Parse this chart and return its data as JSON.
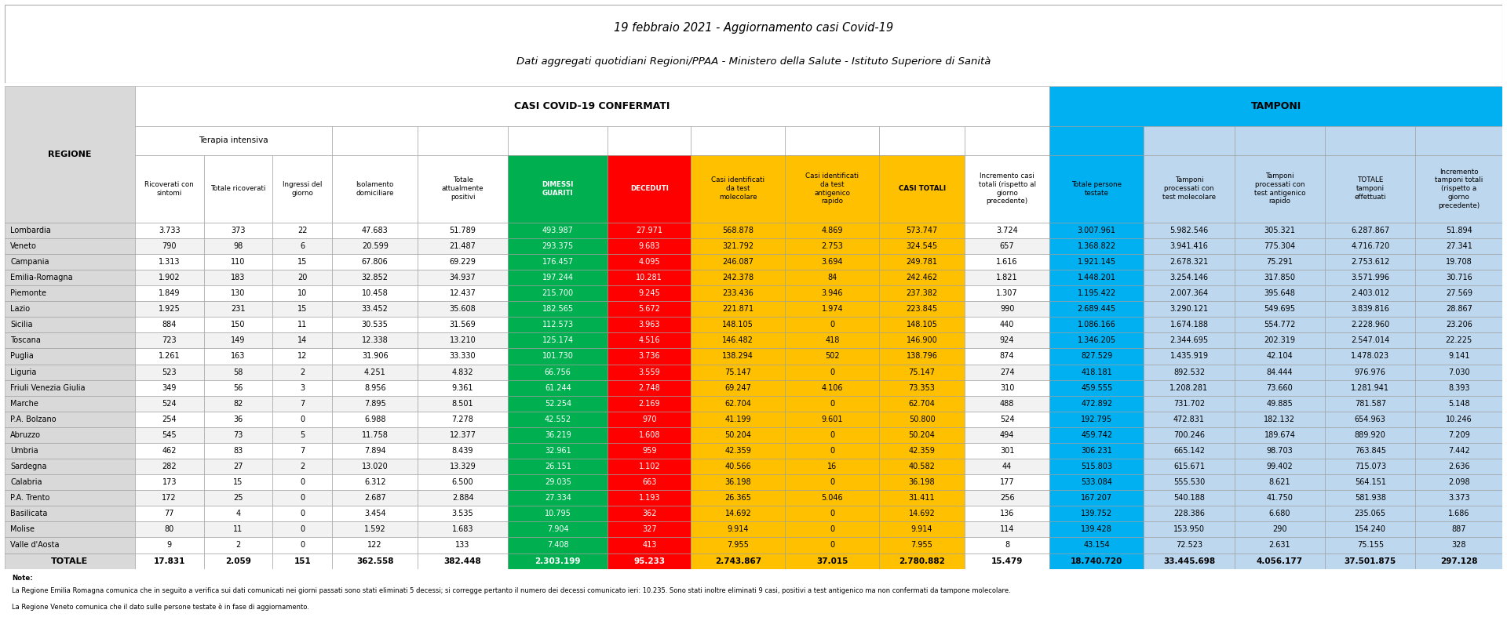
{
  "title1": "19 febbraio 2021 - Aggiornamento casi Covid-19",
  "title2": "Dati aggregati quotidiani Regioni/PPAA - Ministero della Salute - Istituto Superiore di Sanità",
  "header_casi": "CASI COVID-19 CONFERMATI",
  "header_tamponi": "TAMPONI",
  "subheader_terapia": "Terapia intensiva",
  "regions": [
    "Lombardia",
    "Veneto",
    "Campania",
    "Emilia-Romagna",
    "Piemonte",
    "Lazio",
    "Sicilia",
    "Toscana",
    "Puglia",
    "Liguria",
    "Friuli Venezia Giulia",
    "Marche",
    "P.A. Bolzano",
    "Abruzzo",
    "Umbria",
    "Sardegna",
    "Calabria",
    "P.A. Trento",
    "Basilicata",
    "Molise",
    "Valle d'Aosta"
  ],
  "col_header_texts": [
    "",
    "Ricoverati con\nsintomi",
    "Totale ricoverati",
    "Ingressi del\ngiorno",
    "Isolamento\ndomiciliare",
    "Totale\nattualmente\npositivi",
    "DIMESSI\nGUARITI",
    "DECEDUTI",
    "Casi identificati\nda test\nmolecolare",
    "Casi identificati\nda test\nantigenico\nrapido",
    "CASI TOTALI",
    "Incremento casi\ntotali (rispetto al\ngiorno\nprecedente)",
    "Totale persone\ntestate",
    "Tamponi\nprocessati con\ntest molecolare",
    "Tamponi\nprocessati con\ntest antigenico\nrapido",
    "TOTALE\ntamponi\neffettuati",
    "Incremento\ntamponi totali\n(rispetto a\ngiorno\nprecedente)"
  ],
  "data": [
    [
      3733,
      373,
      22,
      47683,
      51789,
      493987,
      27971,
      568878,
      4869,
      573747,
      3724,
      3007961,
      5982546,
      305321,
      6287867,
      51894
    ],
    [
      790,
      98,
      6,
      20599,
      21487,
      293375,
      9683,
      321792,
      2753,
      324545,
      657,
      1368822,
      3941416,
      775304,
      4716720,
      27341
    ],
    [
      1313,
      110,
      15,
      67806,
      69229,
      176457,
      4095,
      246087,
      3694,
      249781,
      1616,
      1921145,
      2678321,
      75291,
      2753612,
      19708
    ],
    [
      1902,
      183,
      20,
      32852,
      34937,
      197244,
      10281,
      242378,
      84,
      242462,
      1821,
      1448201,
      3254146,
      317850,
      3571996,
      30716
    ],
    [
      1849,
      130,
      10,
      10458,
      12437,
      215700,
      9245,
      233436,
      3946,
      237382,
      1307,
      1195422,
      2007364,
      395648,
      2403012,
      27569
    ],
    [
      1925,
      231,
      15,
      33452,
      35608,
      182565,
      5672,
      221871,
      1974,
      223845,
      990,
      2689445,
      3290121,
      549695,
      3839816,
      28867
    ],
    [
      884,
      150,
      11,
      30535,
      31569,
      112573,
      3963,
      148105,
      0,
      148105,
      440,
      1086166,
      1674188,
      554772,
      2228960,
      23206
    ],
    [
      723,
      149,
      14,
      12338,
      13210,
      125174,
      4516,
      146482,
      418,
      146900,
      924,
      1346205,
      2344695,
      202319,
      2547014,
      22225
    ],
    [
      1261,
      163,
      12,
      31906,
      33330,
      101730,
      3736,
      138294,
      502,
      138796,
      874,
      827529,
      1435919,
      42104,
      1478023,
      9141
    ],
    [
      523,
      58,
      2,
      4251,
      4832,
      66756,
      3559,
      75147,
      0,
      75147,
      274,
      418181,
      892532,
      84444,
      976976,
      7030
    ],
    [
      349,
      56,
      3,
      8956,
      9361,
      61244,
      2748,
      69247,
      4106,
      73353,
      310,
      459555,
      1208281,
      73660,
      1281941,
      8393
    ],
    [
      524,
      82,
      7,
      7895,
      8501,
      52254,
      2169,
      62704,
      0,
      62704,
      488,
      472892,
      731702,
      49885,
      781587,
      5148
    ],
    [
      254,
      36,
      0,
      6988,
      7278,
      42552,
      970,
      41199,
      9601,
      50800,
      524,
      192795,
      472831,
      182132,
      654963,
      10246
    ],
    [
      545,
      73,
      5,
      11758,
      12377,
      36219,
      1608,
      50204,
      0,
      50204,
      494,
      459742,
      700246,
      189674,
      889920,
      7209
    ],
    [
      462,
      83,
      7,
      7894,
      8439,
      32961,
      959,
      42359,
      0,
      42359,
      301,
      306231,
      665142,
      98703,
      763845,
      7442
    ],
    [
      282,
      27,
      2,
      13020,
      13329,
      26151,
      1102,
      40566,
      16,
      40582,
      44,
      515803,
      615671,
      99402,
      715073,
      2636
    ],
    [
      173,
      15,
      0,
      6312,
      6500,
      29035,
      663,
      36198,
      0,
      36198,
      177,
      533084,
      555530,
      8621,
      564151,
      2098
    ],
    [
      172,
      25,
      0,
      2687,
      2884,
      27334,
      1193,
      26365,
      5046,
      31411,
      256,
      167207,
      540188,
      41750,
      581938,
      3373
    ],
    [
      77,
      4,
      0,
      3454,
      3535,
      10795,
      362,
      14692,
      0,
      14692,
      136,
      139752,
      228386,
      6680,
      235065,
      1686
    ],
    [
      80,
      11,
      0,
      1592,
      1683,
      7904,
      327,
      9914,
      0,
      9914,
      114,
      139428,
      153950,
      290,
      154240,
      887
    ],
    [
      9,
      2,
      0,
      122,
      133,
      7408,
      413,
      7955,
      0,
      7955,
      8,
      43154,
      72523,
      2631,
      75155,
      328
    ]
  ],
  "totals": [
    17831,
    2059,
    151,
    362558,
    382448,
    2303199,
    95233,
    2743867,
    37015,
    2780882,
    15479,
    18740720,
    33445698,
    4056177,
    37501875,
    297128
  ],
  "col_bg": [
    "#d9d9d9",
    "#ffffff",
    "#ffffff",
    "#ffffff",
    "#ffffff",
    "#ffffff",
    "#00b050",
    "#ff0000",
    "#ffc000",
    "#ffc000",
    "#ffc000",
    "#ffffff",
    "#00b0f0",
    "#bdd7ee",
    "#bdd7ee",
    "#bdd7ee",
    "#bdd7ee"
  ],
  "note_lines": [
    "Note:",
    "La Regione Emilia Romagna comunica che in seguito a verifica sui dati comunicati nei giorni passati sono stati eliminati 5 decessi; si corregge pertanto il numero dei decessi comunicato ieri: 10.235. Sono stati inoltre eliminati 9 casi, positivi a test antigenico ma non confermati da tampone molecolare.",
    "La Regione Veneto comunica che il dato sulle persone testate è in fase di aggiornamento."
  ]
}
